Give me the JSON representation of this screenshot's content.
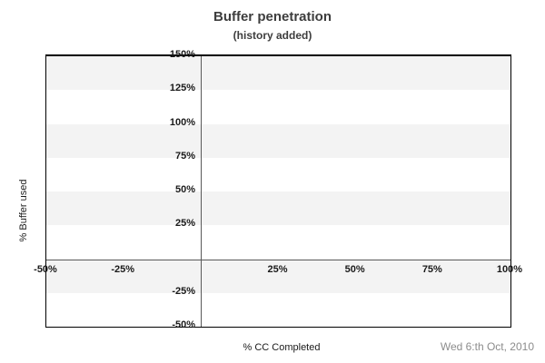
{
  "chart_data": {
    "type": "line",
    "title": "Buffer penetration",
    "subtitle": "(history added)",
    "xlabel": "% CC Completed",
    "ylabel": "% Buffer used",
    "xlim": [
      -50,
      100
    ],
    "ylim": [
      -50,
      150
    ],
    "x_ticks": [
      {
        "value": -50,
        "label": "-50%"
      },
      {
        "value": -25,
        "label": "-25%"
      },
      {
        "value": 25,
        "label": "25%"
      },
      {
        "value": 50,
        "label": "50%"
      },
      {
        "value": 75,
        "label": "75%"
      },
      {
        "value": 100,
        "label": "100%"
      }
    ],
    "y_ticks": [
      {
        "value": 150,
        "label": "150%"
      },
      {
        "value": 125,
        "label": "125%"
      },
      {
        "value": 100,
        "label": "100%"
      },
      {
        "value": 75,
        "label": "75%"
      },
      {
        "value": 50,
        "label": "50%"
      },
      {
        "value": 25,
        "label": "25%"
      },
      {
        "value": -25,
        "label": "-25%"
      },
      {
        "value": -50,
        "label": "-50%"
      }
    ],
    "series": [],
    "band_step": 25,
    "legend": "none",
    "grid": "striped-horizontal-bands",
    "colors": {
      "band_gray": "#f3f3f3",
      "band_white": "#ffffff",
      "axis_zero_line": "#595959",
      "plot_border": "#000000",
      "title_text": "#3d3d3d",
      "tick_text": "#1a1a1a",
      "date_text": "#8c8c8c"
    }
  },
  "footer": {
    "date_label": "Wed 6:th Oct, 2010"
  }
}
